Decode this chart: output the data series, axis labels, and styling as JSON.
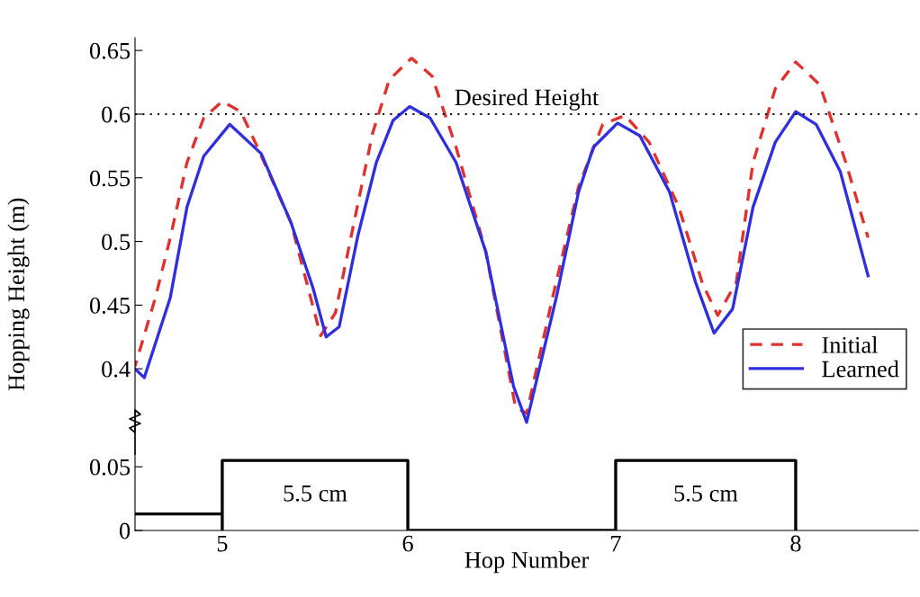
{
  "chart_data": [
    {
      "type": "line",
      "ylabel": "Hopping Height (m)",
      "xlim": [
        4.53,
        8.75
      ],
      "ylim": [
        0.35,
        0.66
      ],
      "yticks": [
        0.4,
        0.45,
        0.5,
        0.55,
        0.6,
        0.65
      ],
      "tick_labels": "y",
      "legend": "lower right",
      "grid": false,
      "ref_lines": [
        {
          "axis": "y",
          "value": 0.6,
          "label": "Desired Height",
          "color": "#000000",
          "line_style": "dotted"
        }
      ],
      "series": [
        {
          "name": "Initial",
          "color": "#e0312e",
          "line_style": "dashed",
          "x": [
            4.53,
            4.64,
            4.72,
            4.81,
            4.9,
            5.0,
            5.1,
            5.19,
            5.37,
            5.53,
            5.61,
            5.71,
            5.81,
            5.9,
            6.02,
            6.13,
            6.26,
            6.42,
            6.58,
            6.64,
            6.78,
            6.92,
            7.05,
            7.17,
            7.3,
            7.46,
            7.59,
            7.67,
            7.77,
            7.86,
            7.98,
            8.09,
            8.22,
            8.36,
            8.48
          ],
          "values": [
            0.402,
            0.456,
            0.503,
            0.562,
            0.597,
            0.61,
            0.602,
            0.574,
            0.515,
            0.426,
            0.444,
            0.515,
            0.585,
            0.627,
            0.644,
            0.63,
            0.574,
            0.492,
            0.37,
            0.365,
            0.456,
            0.543,
            0.592,
            0.599,
            0.578,
            0.527,
            0.466,
            0.442,
            0.468,
            0.562,
            0.62,
            0.641,
            0.623,
            0.562,
            0.503
          ]
        },
        {
          "name": "Learned",
          "color": "#2f2fe0",
          "line_style": "solid",
          "x": [
            4.53,
            4.58,
            4.72,
            4.81,
            4.9,
            5.04,
            5.21,
            5.37,
            5.49,
            5.56,
            5.63,
            5.73,
            5.83,
            5.92,
            6.01,
            6.12,
            6.26,
            6.42,
            6.57,
            6.64,
            6.8,
            6.92,
            7.0,
            7.13,
            7.25,
            7.41,
            7.55,
            7.65,
            7.75,
            7.86,
            7.98,
            8.09,
            8.2,
            8.33,
            8.48
          ],
          "values": [
            0.4,
            0.393,
            0.456,
            0.527,
            0.567,
            0.592,
            0.569,
            0.515,
            0.463,
            0.425,
            0.433,
            0.504,
            0.562,
            0.595,
            0.606,
            0.597,
            0.562,
            0.492,
            0.386,
            0.358,
            0.456,
            0.539,
            0.574,
            0.593,
            0.583,
            0.539,
            0.468,
            0.428,
            0.447,
            0.527,
            0.578,
            0.602,
            0.592,
            0.555,
            0.473
          ]
        }
      ]
    },
    {
      "type": "line",
      "xlabel": "Hop Number",
      "xlim": [
        4.53,
        8.75
      ],
      "xticks": [
        5,
        6,
        {
          "value": 7.12,
          "label": "7"
        },
        {
          "value": 8.09,
          "label": "8"
        }
      ],
      "ylim": [
        0,
        0.06
      ],
      "yticks": [
        0,
        0.05
      ],
      "grid": false,
      "annotations": [
        "5.5 cm",
        "5.5 cm"
      ],
      "series": [
        {
          "color": "#000000",
          "line_style": "solid",
          "x": [
            4.53,
            5,
            5,
            5,
            6,
            6,
            7.12,
            7.12,
            8.09,
            8.09
          ],
          "values": [
            0.013,
            0.013,
            0,
            0.055,
            0.055,
            0,
            0,
            0.055,
            0.055,
            0
          ]
        }
      ]
    }
  ]
}
